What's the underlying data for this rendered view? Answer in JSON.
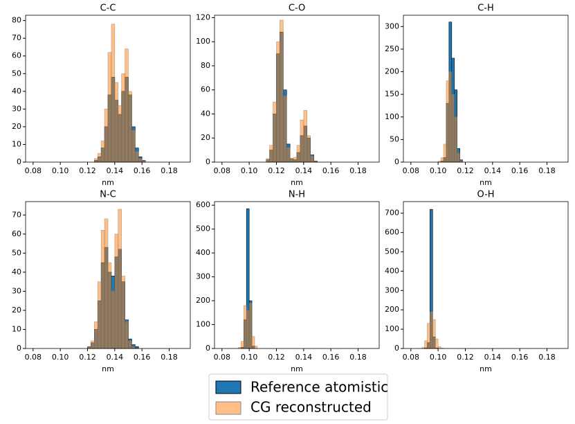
{
  "chart_data": [
    {
      "type": "histogram",
      "title": "C-C",
      "xlabel": "nm",
      "bins": [
        0.125,
        0.1275,
        0.13,
        0.1325,
        0.135,
        0.1375,
        0.14,
        0.1425,
        0.145,
        0.1475,
        0.15,
        0.1525,
        0.155,
        0.1575,
        0.16,
        0.1625,
        0.165
      ],
      "series": [
        {
          "name": "Reference atomistic",
          "color": "#1f77b4",
          "alpha": 1,
          "values": [
            1,
            3,
            8,
            20,
            38,
            48,
            35,
            27,
            40,
            48,
            38,
            20,
            8,
            3,
            1,
            0
          ]
        },
        {
          "name": "CG reconstructed",
          "color": "#ff7f0e",
          "alpha": 0.5,
          "values": [
            2,
            5,
            12,
            30,
            62,
            78,
            45,
            32,
            50,
            64,
            40,
            18,
            6,
            2,
            1,
            0
          ]
        }
      ],
      "xlim": [
        0.0745,
        0.1955
      ],
      "xticks": [
        0.08,
        {
          "value": 0.1,
          "label": "0.10"
        },
        0.12,
        0.14,
        0.16,
        0.18
      ],
      "ylim": [
        0,
        83
      ],
      "yticks": [
        0,
        10,
        20,
        30,
        40,
        50,
        60,
        70,
        80
      ]
    },
    {
      "type": "histogram",
      "title": "C-O",
      "xlabel": "nm",
      "bins": [
        0.11,
        0.1125,
        0.115,
        0.1175,
        0.12,
        0.1225,
        0.125,
        0.1275,
        0.13,
        0.1325,
        0.135,
        0.1375,
        0.14,
        0.1425,
        0.145,
        0.1475,
        0.15
      ],
      "series": [
        {
          "name": "Reference atomistic",
          "color": "#1f77b4",
          "alpha": 1,
          "values": [
            0,
            2,
            10,
            40,
            90,
            108,
            60,
            15,
            3,
            2,
            8,
            22,
            30,
            20,
            6,
            1
          ]
        },
        {
          "name": "CG reconstructed",
          "color": "#ff7f0e",
          "alpha": 0.5,
          "values": [
            0,
            3,
            14,
            50,
            100,
            118,
            55,
            12,
            3,
            4,
            14,
            35,
            43,
            22,
            5,
            1
          ]
        }
      ],
      "xlim": [
        0.0745,
        0.1955
      ],
      "xticks": [
        0.08,
        {
          "value": 0.1,
          "label": "0.10"
        },
        0.12,
        0.14,
        0.16,
        0.18
      ],
      "ylim": [
        0,
        122
      ],
      "yticks": [
        0,
        20,
        40,
        60,
        80,
        100,
        120
      ]
    },
    {
      "type": "histogram",
      "title": "C-H",
      "xlabel": "nm",
      "bins": [
        0.1,
        0.102,
        0.104,
        0.106,
        0.108,
        0.11,
        0.112,
        0.114,
        0.116,
        0.118,
        0.12
      ],
      "series": [
        {
          "name": "Reference atomistic",
          "color": "#1f77b4",
          "alpha": 1,
          "values": [
            0,
            2,
            10,
            130,
            310,
            230,
            160,
            30,
            5,
            0
          ]
        },
        {
          "name": "CG reconstructed",
          "color": "#ff7f0e",
          "alpha": 0.5,
          "values": [
            2,
            10,
            40,
            180,
            200,
            150,
            100,
            20,
            3,
            0
          ]
        }
      ],
      "xlim": [
        0.0745,
        0.1955
      ],
      "xticks": [
        0.08,
        {
          "value": 0.1,
          "label": "0.10"
        },
        0.12,
        0.14,
        0.16,
        0.18
      ],
      "ylim": [
        0,
        325
      ],
      "yticks": [
        0,
        50,
        100,
        150,
        200,
        250,
        300
      ]
    },
    {
      "type": "histogram",
      "title": "N-C",
      "xlabel": "nm",
      "bins": [
        0.12,
        0.1225,
        0.125,
        0.1275,
        0.13,
        0.1325,
        0.135,
        0.1375,
        0.14,
        0.1425,
        0.145,
        0.1475,
        0.15,
        0.1525,
        0.155,
        0.1575,
        0.16
      ],
      "series": [
        {
          "name": "Reference atomistic",
          "color": "#1f77b4",
          "alpha": 1,
          "values": [
            1,
            3,
            10,
            25,
            45,
            53,
            40,
            38,
            48,
            52,
            35,
            15,
            5,
            2,
            1,
            0
          ]
        },
        {
          "name": "CG reconstructed",
          "color": "#ff7f0e",
          "alpha": 0.5,
          "values": [
            1,
            4,
            14,
            35,
            62,
            68,
            45,
            30,
            60,
            73,
            38,
            14,
            4,
            1,
            0,
            0
          ]
        }
      ],
      "xlim": [
        0.0745,
        0.1955
      ],
      "xticks": [
        0.08,
        {
          "value": 0.1,
          "label": "0.10"
        },
        0.12,
        0.14,
        0.16,
        0.18
      ],
      "ylim": [
        0,
        77
      ],
      "yticks": [
        0,
        10,
        20,
        30,
        40,
        50,
        60,
        70
      ]
    },
    {
      "type": "histogram",
      "title": "N-H",
      "xlabel": "nm",
      "bins": [
        0.092,
        0.094,
        0.096,
        0.098,
        0.1,
        0.102,
        0.104,
        0.106
      ],
      "series": [
        {
          "name": "Reference atomistic",
          "color": "#1f77b4",
          "alpha": 1,
          "values": [
            0,
            5,
            120,
            585,
            200,
            10,
            0
          ]
        },
        {
          "name": "CG reconstructed",
          "color": "#ff7f0e",
          "alpha": 0.5,
          "values": [
            5,
            30,
            180,
            160,
            190,
            50,
            10
          ]
        }
      ],
      "xlim": [
        0.0745,
        0.1955
      ],
      "xticks": [
        0.08,
        {
          "value": 0.1,
          "label": "0.10"
        },
        0.12,
        0.14,
        0.16,
        0.18
      ],
      "ylim": [
        0,
        615
      ],
      "yticks": [
        0,
        100,
        200,
        300,
        400,
        500,
        600
      ]
    },
    {
      "type": "histogram",
      "title": "O-H",
      "xlabel": "nm",
      "bins": [
        0.088,
        0.09,
        0.092,
        0.094,
        0.096,
        0.098,
        0.1,
        0.102,
        0.104
      ],
      "series": [
        {
          "name": "Reference atomistic",
          "color": "#1f77b4",
          "alpha": 1,
          "values": [
            0,
            3,
            30,
            720,
            60,
            2,
            0,
            0
          ]
        },
        {
          "name": "CG reconstructed",
          "color": "#ff7f0e",
          "alpha": 0.5,
          "values": [
            5,
            40,
            130,
            190,
            150,
            50,
            10,
            2
          ]
        }
      ],
      "xlim": [
        0.0745,
        0.1955
      ],
      "xticks": [
        0.08,
        {
          "value": 0.1,
          "label": "0.10"
        },
        0.12,
        0.14,
        0.16,
        0.18
      ],
      "ylim": [
        0,
        760
      ],
      "yticks": [
        0,
        100,
        200,
        300,
        400,
        500,
        600,
        700
      ]
    }
  ]
}
